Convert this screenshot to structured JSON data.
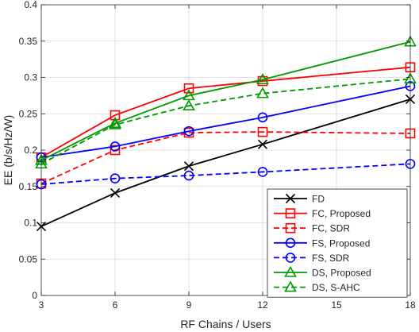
{
  "chart_data": {
    "type": "line",
    "xlabel": "RF Chains / Users",
    "ylabel": "EE (b/s/Hz/W)",
    "x": [
      3,
      6,
      9,
      12,
      15,
      18
    ],
    "xlim": [
      3,
      18
    ],
    "ylim": [
      0,
      0.4
    ],
    "xticks": [
      "3",
      "6",
      "9",
      "12",
      "15",
      "18"
    ],
    "yticks": [
      "0",
      "0.05",
      "0.1",
      "0.15",
      "0.2",
      "0.25",
      "0.3",
      "0.35",
      "0.4"
    ],
    "grid": true,
    "legend_position": "bottom-right",
    "series": [
      {
        "name": "FD",
        "x": [
          3,
          6,
          9,
          12,
          18
        ],
        "values": [
          0.095,
          0.141,
          0.178,
          0.208,
          0.27
        ],
        "color": "#000000",
        "dash": "solid",
        "marker": "x"
      },
      {
        "name": "FC, Proposed",
        "x": [
          3,
          6,
          9,
          12,
          18
        ],
        "values": [
          0.19,
          0.248,
          0.285,
          0.295,
          0.314
        ],
        "color": "#ff0000",
        "dash": "solid",
        "marker": "square"
      },
      {
        "name": "FC, SDR",
        "x": [
          3,
          6,
          9,
          12,
          18
        ],
        "values": [
          0.154,
          0.2,
          0.224,
          0.225,
          0.223
        ],
        "color": "#ff0000",
        "dash": "dashed",
        "marker": "square"
      },
      {
        "name": "FS, Proposed",
        "x": [
          3,
          6,
          9,
          12,
          18
        ],
        "values": [
          0.19,
          0.205,
          0.226,
          0.245,
          0.288
        ],
        "color": "#0000ff",
        "dash": "solid",
        "marker": "circle"
      },
      {
        "name": "FS, SDR",
        "x": [
          3,
          6,
          9,
          12,
          18
        ],
        "values": [
          0.153,
          0.161,
          0.165,
          0.17,
          0.181
        ],
        "color": "#0000ff",
        "dash": "dashed",
        "marker": "circle"
      },
      {
        "name": "DS, Proposed",
        "x": [
          3,
          6,
          9,
          12,
          18
        ],
        "values": [
          0.186,
          0.237,
          0.275,
          0.297,
          0.349
        ],
        "color": "#009900",
        "dash": "solid",
        "marker": "triangle"
      },
      {
        "name": "DS, S-AHC",
        "x": [
          3,
          6,
          9,
          12,
          18
        ],
        "values": [
          0.181,
          0.235,
          0.261,
          0.278,
          0.298
        ],
        "color": "#009900",
        "dash": "dashed",
        "marker": "triangle"
      }
    ]
  }
}
